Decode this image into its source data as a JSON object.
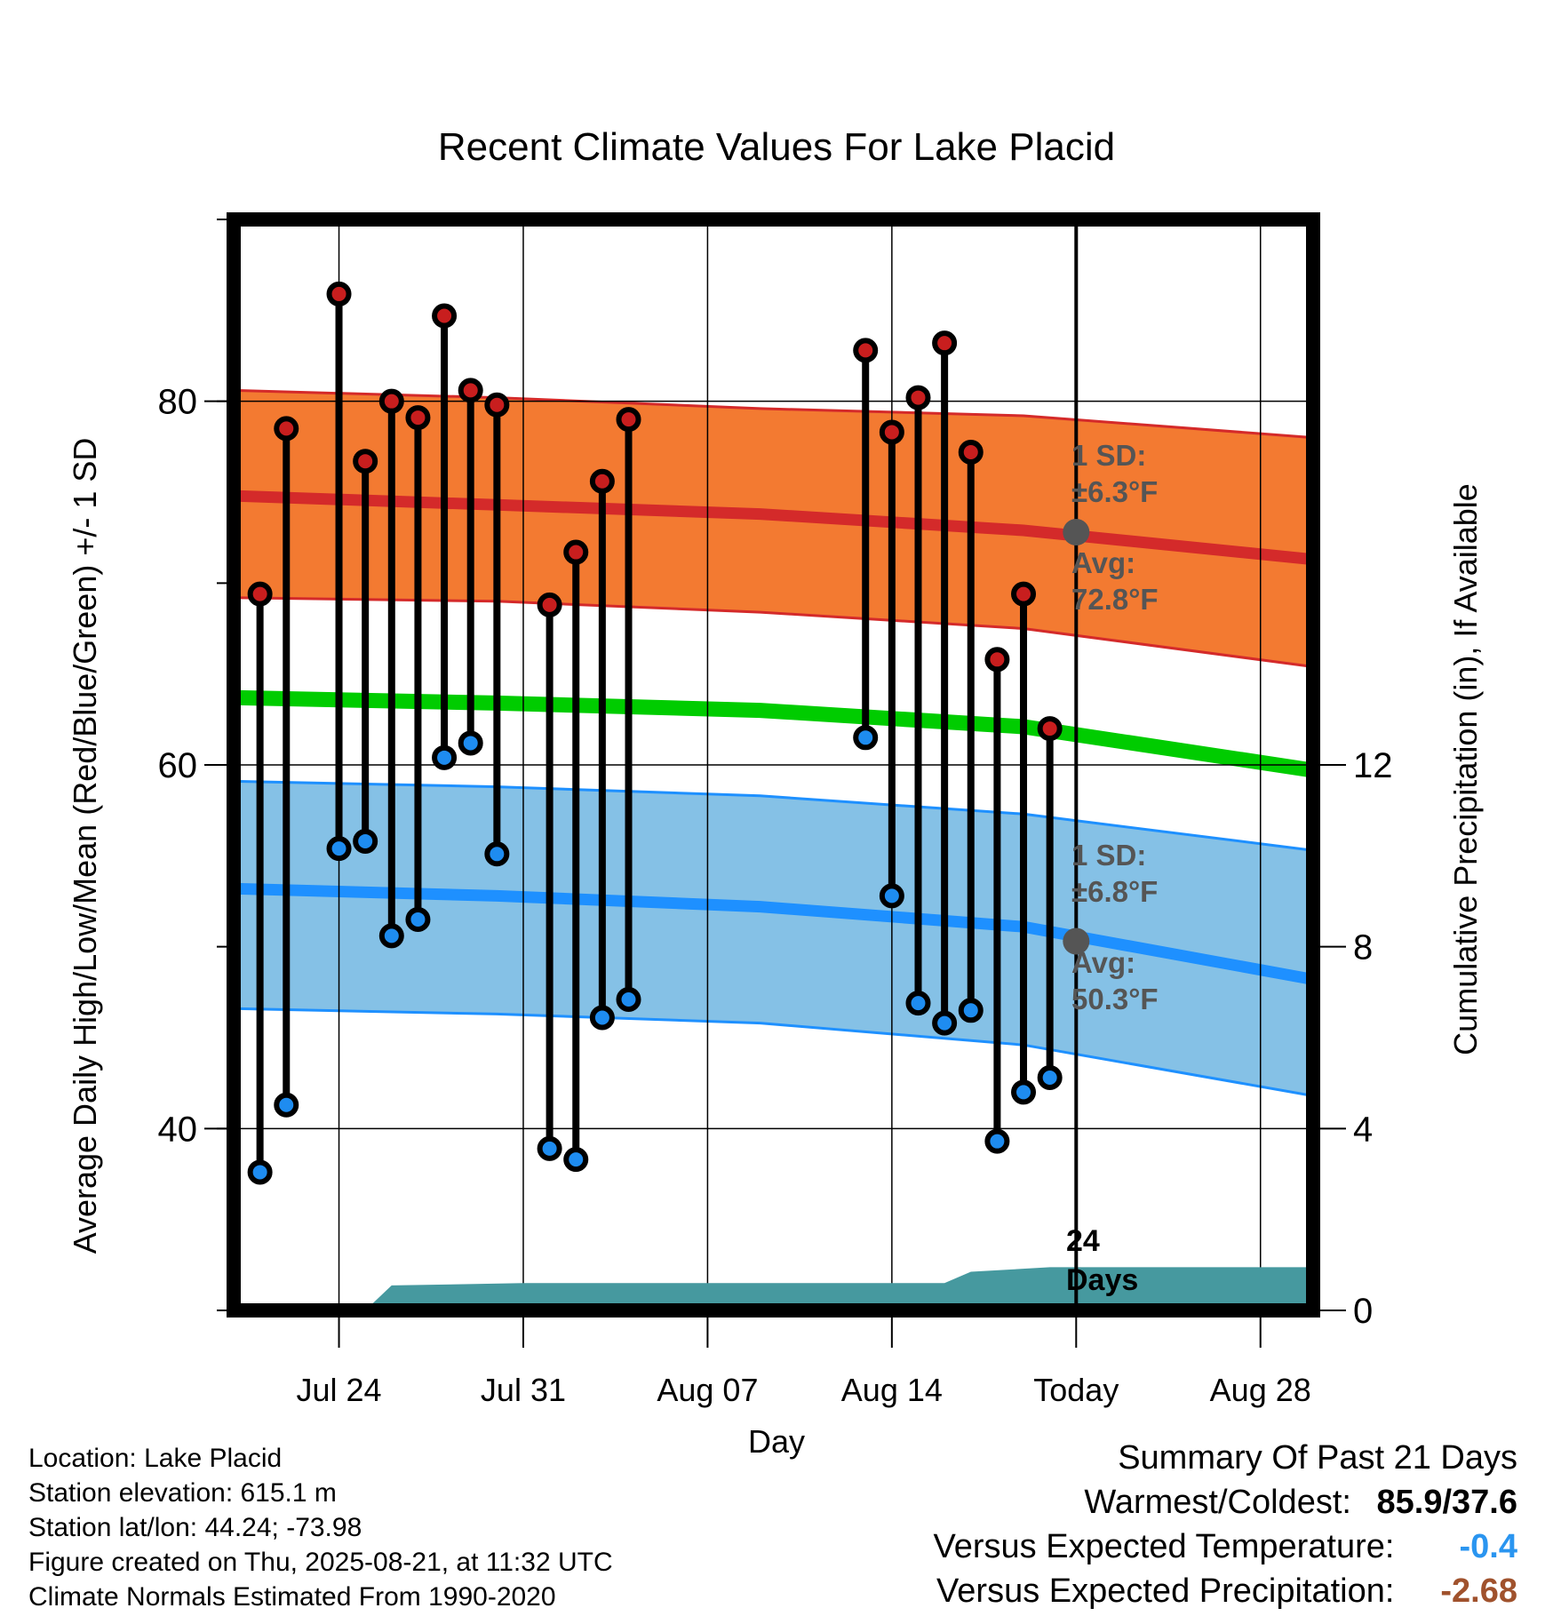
{
  "chart_data": {
    "type": "line",
    "title": "Recent Climate Values For Lake Placid",
    "xlabel": "Day",
    "ylabel": "Average Daily High/Low/Mean (Red/Blue/Green) +/- 1 SD",
    "y2label": "Cumulative Precipitation (in), If Available",
    "ylim": [
      30,
      90
    ],
    "y2lim": [
      0,
      24
    ],
    "xlim": [
      "Jul 20",
      "Aug 30"
    ],
    "y_ticks": [
      "40",
      "60",
      "80"
    ],
    "y2_ticks": [
      "0",
      "4",
      "8",
      "12"
    ],
    "x_ticks": [
      {
        "date": "Jul 24",
        "label": "Jul 24"
      },
      {
        "date": "Jul 31",
        "label": "Jul 31"
      },
      {
        "date": "Aug 07",
        "label": "Aug 07"
      },
      {
        "date": "Aug 14",
        "label": "Aug 14"
      },
      {
        "date": "Aug 21",
        "label": "Today"
      },
      {
        "date": "Aug 28",
        "label": "Aug 28"
      }
    ],
    "today": "Aug 21",
    "grid": true,
    "normals": {
      "dates": [
        "Jul 20",
        "Jul 30",
        "Aug 09",
        "Aug 19",
        "Aug 30"
      ],
      "high_mean": [
        74.8,
        74.3,
        73.8,
        72.9,
        71.3
      ],
      "high_upper": [
        80.6,
        80.2,
        79.6,
        79.2,
        78.0
      ],
      "high_lower": [
        69.2,
        69.0,
        68.4,
        67.5,
        65.4
      ],
      "mean": [
        63.7,
        63.4,
        63.0,
        62.1,
        59.7
      ],
      "low_mean": [
        53.2,
        52.8,
        52.2,
        51.1,
        48.2
      ],
      "low_upper": [
        59.1,
        58.8,
        58.3,
        57.3,
        55.3
      ],
      "low_lower": [
        46.6,
        46.3,
        45.8,
        44.6,
        41.8
      ]
    },
    "series": [
      {
        "name": "High",
        "x": [
          "Jul 21",
          "Jul 22",
          "Jul 24",
          "Jul 25",
          "Jul 26",
          "Jul 27",
          "Jul 28",
          "Jul 29",
          "Jul 30",
          "Aug 01",
          "Aug 02",
          "Aug 03",
          "Aug 04",
          "Aug 13",
          "Aug 14",
          "Aug 15",
          "Aug 16",
          "Aug 17",
          "Aug 18",
          "Aug 19",
          "Aug 20"
        ],
        "values": [
          69.4,
          78.5,
          85.9,
          76.7,
          80.0,
          79.1,
          84.7,
          80.6,
          79.8,
          68.8,
          71.7,
          75.6,
          79.0,
          82.8,
          78.3,
          80.2,
          83.2,
          77.2,
          65.8,
          69.4,
          62.0
        ]
      },
      {
        "name": "Low",
        "x": [
          "Jul 21",
          "Jul 22",
          "Jul 24",
          "Jul 25",
          "Jul 26",
          "Jul 27",
          "Jul 28",
          "Jul 29",
          "Jul 30",
          "Aug 01",
          "Aug 02",
          "Aug 03",
          "Aug 04",
          "Aug 13",
          "Aug 14",
          "Aug 15",
          "Aug 16",
          "Aug 17",
          "Aug 18",
          "Aug 19",
          "Aug 20"
        ],
        "values": [
          37.6,
          41.3,
          55.4,
          55.8,
          50.6,
          51.5,
          60.4,
          61.2,
          55.1,
          38.9,
          38.3,
          46.1,
          47.1,
          61.5,
          52.8,
          46.9,
          45.8,
          46.5,
          39.3,
          42.0,
          42.8
        ]
      }
    ],
    "precipitation": {
      "x": [
        "Jul 20",
        "Jul 25",
        "Jul 26",
        "Jul 31",
        "Aug 16",
        "Aug 17",
        "Aug 20",
        "Aug 30"
      ],
      "values": [
        0,
        0,
        0.55,
        0.6,
        0.6,
        0.85,
        0.95,
        0.95
      ]
    }
  },
  "annotations": {
    "high": {
      "sd_label": "1 SD:",
      "sd_value": "±6.3°F",
      "avg_label": "Avg:",
      "avg_value": "72.8°F",
      "avg": 72.8
    },
    "low": {
      "sd_label": "1 SD:",
      "sd_value": "±6.8°F",
      "avg_label": "Avg:",
      "avg_value": "50.3°F",
      "avg": 50.3
    },
    "days_count": "24",
    "days_word": "Days"
  },
  "info": {
    "location": "Location: Lake Placid",
    "elevation": "Station elevation: 615.1 m",
    "latlon": "Station lat/lon: 44.24; -73.98",
    "created": "Figure created on Thu, 2025-08-21, at 11:32 UTC",
    "normals": "Climate Normals Estimated From 1990-2020"
  },
  "summary": {
    "title": "Summary Of Past 21 Days",
    "warm_cold_label": "Warmest/Coldest:",
    "warm_cold_value": "85.9/37.6",
    "temp_label": "Versus Expected Temperature:",
    "temp_value": "-0.4",
    "precip_label": "Versus Expected Precipitation:",
    "precip_value": "-2.68"
  },
  "colors": {
    "high_band": "#f37a31",
    "high_line": "#d42a2a",
    "mean_line": "#00cc00",
    "low_band": "#85c1e6",
    "low_line": "#1e90ff",
    "high_dot": "#c81e1e",
    "low_dot": "#1e8cf0",
    "precip": "#46999f",
    "avg_dot": "#555555",
    "temp_value": "#2a95f0",
    "precip_value": "#a0522d"
  }
}
